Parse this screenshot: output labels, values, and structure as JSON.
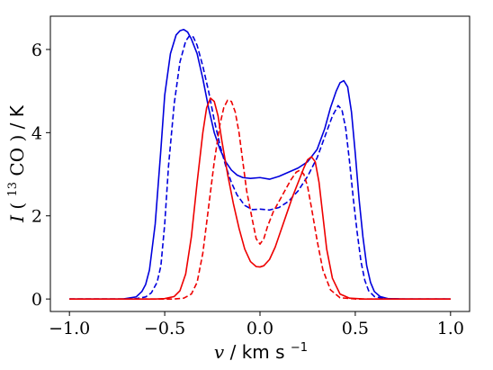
{
  "chart_data": {
    "type": "line",
    "xlabel_var": "v",
    "xlabel_unit": "km s",
    "xlabel_exp": "−1",
    "ylabel_var": "I",
    "ylabel_sup": "13",
    "ylabel_species": "CO",
    "ylabel_unit": "K",
    "xlim": [
      -1.1,
      1.1
    ],
    "ylim": [
      -0.3,
      6.8
    ],
    "xticks": [
      -1.0,
      -0.5,
      0.0,
      0.5,
      1.0
    ],
    "xtick_labels": [
      "−1.0",
      "−0.5",
      "0.0",
      "0.5",
      "1.0"
    ],
    "yticks": [
      0,
      2,
      4,
      6
    ],
    "ytick_labels": [
      "0",
      "2",
      "4",
      "6"
    ],
    "grid": false,
    "colors": {
      "blue": "#0000dd",
      "red": "#ee0000"
    },
    "series": [
      {
        "color": "blue",
        "dash": "solid",
        "x": [
          -1.0,
          -0.72,
          -0.65,
          -0.62,
          -0.6,
          -0.58,
          -0.55,
          -0.52,
          -0.5,
          -0.47,
          -0.44,
          -0.42,
          -0.4,
          -0.38,
          -0.36,
          -0.33,
          -0.3,
          -0.27,
          -0.24,
          -0.21,
          -0.18,
          -0.15,
          -0.12,
          -0.09,
          -0.05,
          0.0,
          0.05,
          0.1,
          0.15,
          0.2,
          0.25,
          0.3,
          0.34,
          0.37,
          0.4,
          0.42,
          0.44,
          0.46,
          0.48,
          0.5,
          0.52,
          0.54,
          0.56,
          0.58,
          0.6,
          0.63,
          0.67,
          0.75,
          1.0
        ],
        "y": [
          0,
          0,
          0.05,
          0.18,
          0.35,
          0.7,
          1.8,
          3.6,
          4.9,
          5.9,
          6.35,
          6.45,
          6.48,
          6.42,
          6.25,
          5.9,
          5.3,
          4.6,
          4.0,
          3.6,
          3.3,
          3.1,
          2.98,
          2.92,
          2.9,
          2.92,
          2.88,
          2.95,
          3.05,
          3.15,
          3.3,
          3.6,
          4.1,
          4.6,
          5.0,
          5.2,
          5.25,
          5.1,
          4.5,
          3.5,
          2.4,
          1.5,
          0.8,
          0.4,
          0.18,
          0.06,
          0.01,
          0,
          0
        ]
      },
      {
        "color": "blue",
        "dash": "dashed",
        "x": [
          -1.0,
          -0.66,
          -0.6,
          -0.57,
          -0.54,
          -0.52,
          -0.5,
          -0.48,
          -0.45,
          -0.42,
          -0.39,
          -0.37,
          -0.35,
          -0.33,
          -0.3,
          -0.27,
          -0.24,
          -0.21,
          -0.18,
          -0.15,
          -0.12,
          -0.08,
          -0.04,
          0.0,
          0.05,
          0.1,
          0.15,
          0.2,
          0.25,
          0.3,
          0.34,
          0.38,
          0.41,
          0.43,
          0.45,
          0.47,
          0.49,
          0.51,
          0.53,
          0.55,
          0.57,
          0.6,
          0.65,
          0.75,
          1.0
        ],
        "y": [
          0,
          0,
          0.05,
          0.15,
          0.4,
          0.8,
          1.8,
          3.2,
          4.7,
          5.7,
          6.2,
          6.33,
          6.3,
          6.1,
          5.6,
          5.0,
          4.3,
          3.7,
          3.2,
          2.8,
          2.5,
          2.25,
          2.15,
          2.16,
          2.14,
          2.2,
          2.35,
          2.6,
          2.95,
          3.4,
          3.9,
          4.4,
          4.65,
          4.55,
          4.1,
          3.3,
          2.4,
          1.6,
          0.9,
          0.45,
          0.2,
          0.06,
          0.01,
          0,
          0
        ]
      },
      {
        "color": "red",
        "dash": "solid",
        "x": [
          -1.0,
          -0.55,
          -0.5,
          -0.45,
          -0.42,
          -0.39,
          -0.36,
          -0.33,
          -0.3,
          -0.28,
          -0.26,
          -0.24,
          -0.22,
          -0.2,
          -0.17,
          -0.14,
          -0.11,
          -0.08,
          -0.05,
          -0.02,
          0.0,
          0.02,
          0.05,
          0.08,
          0.11,
          0.14,
          0.17,
          0.2,
          0.23,
          0.25,
          0.27,
          0.29,
          0.31,
          0.33,
          0.35,
          0.38,
          0.42,
          0.47,
          0.55,
          1.0
        ],
        "y": [
          0,
          0,
          0.01,
          0.06,
          0.2,
          0.6,
          1.5,
          2.8,
          4.0,
          4.6,
          4.83,
          4.75,
          4.4,
          3.8,
          3.0,
          2.3,
          1.7,
          1.2,
          0.9,
          0.78,
          0.77,
          0.8,
          0.95,
          1.25,
          1.65,
          2.05,
          2.45,
          2.8,
          3.15,
          3.35,
          3.42,
          3.3,
          2.8,
          2.0,
          1.2,
          0.5,
          0.12,
          0.02,
          0,
          0
        ]
      },
      {
        "color": "red",
        "dash": "dashed",
        "x": [
          -1.0,
          -0.45,
          -0.4,
          -0.36,
          -0.33,
          -0.3,
          -0.27,
          -0.24,
          -0.21,
          -0.19,
          -0.17,
          -0.15,
          -0.13,
          -0.11,
          -0.09,
          -0.07,
          -0.04,
          -0.02,
          0.0,
          0.02,
          0.04,
          0.07,
          0.1,
          0.13,
          0.16,
          0.19,
          0.21,
          0.23,
          0.25,
          0.27,
          0.3,
          0.33,
          0.37,
          0.42,
          0.5,
          1.0
        ],
        "y": [
          0,
          0,
          0.02,
          0.12,
          0.4,
          1.1,
          2.2,
          3.3,
          4.2,
          4.6,
          4.78,
          4.75,
          4.5,
          4.0,
          3.3,
          2.6,
          1.9,
          1.45,
          1.32,
          1.45,
          1.75,
          2.1,
          2.35,
          2.6,
          2.85,
          3.05,
          3.1,
          3.0,
          2.7,
          2.2,
          1.4,
          0.7,
          0.22,
          0.03,
          0,
          0
        ]
      }
    ]
  }
}
